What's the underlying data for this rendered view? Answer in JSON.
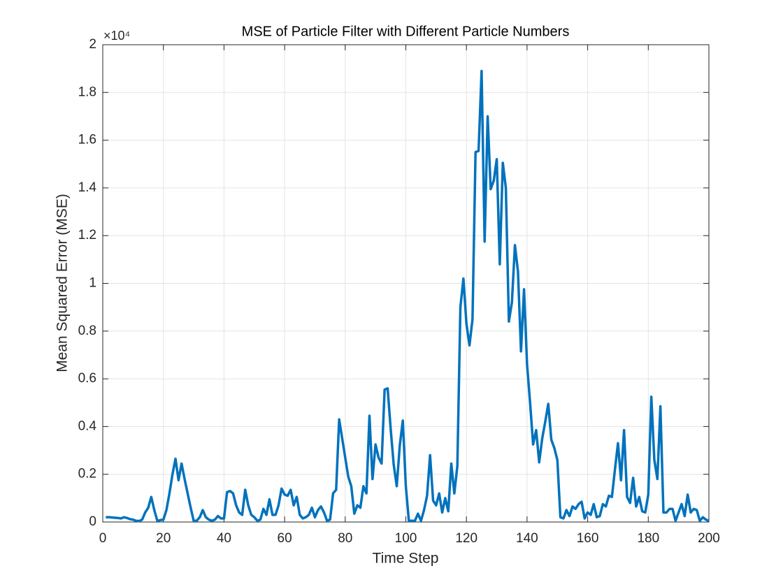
{
  "chart_data": {
    "type": "line",
    "title": "MSE of Particle Filter with Different Particle Numbers",
    "xlabel": "Time Step",
    "ylabel": "Mean Squared Error (MSE)",
    "y_multiplier": "×10⁴",
    "x": [
      1,
      2,
      3,
      4,
      5,
      6,
      7,
      8,
      9,
      10,
      11,
      12,
      13,
      14,
      15,
      16,
      17,
      18,
      19,
      20,
      21,
      22,
      23,
      24,
      25,
      26,
      27,
      28,
      29,
      30,
      31,
      32,
      33,
      34,
      35,
      36,
      37,
      38,
      39,
      40,
      41,
      42,
      43,
      44,
      45,
      46,
      47,
      48,
      49,
      50,
      51,
      52,
      53,
      54,
      55,
      56,
      57,
      58,
      59,
      60,
      61,
      62,
      63,
      64,
      65,
      66,
      67,
      68,
      69,
      70,
      71,
      72,
      73,
      74,
      75,
      76,
      77,
      78,
      79,
      80,
      81,
      82,
      83,
      84,
      85,
      86,
      87,
      88,
      89,
      90,
      91,
      92,
      93,
      94,
      95,
      96,
      97,
      98,
      99,
      100,
      101,
      102,
      103,
      104,
      105,
      106,
      107,
      108,
      109,
      110,
      111,
      112,
      113,
      114,
      115,
      116,
      117,
      118,
      119,
      120,
      121,
      122,
      123,
      124,
      125,
      126,
      127,
      128,
      129,
      130,
      131,
      132,
      133,
      134,
      135,
      136,
      137,
      138,
      139,
      140,
      141,
      142,
      143,
      144,
      145,
      146,
      147,
      148,
      149,
      150,
      151,
      152,
      153,
      154,
      155,
      156,
      157,
      158,
      159,
      160,
      161,
      162,
      163,
      164,
      165,
      166,
      167,
      168,
      169,
      170,
      171,
      172,
      173,
      174,
      175,
      176,
      177,
      178,
      179,
      180,
      181,
      182,
      183,
      184,
      185,
      186,
      187,
      188,
      189,
      190,
      191,
      192,
      193,
      194,
      195,
      196,
      197,
      198,
      199,
      200
    ],
    "series": [
      {
        "color": "#0072bd",
        "values": [
          0.02,
          0.02,
          0.019,
          0.018,
          0.017,
          0.015,
          0.02,
          0.017,
          0.012,
          0.01,
          0.005,
          0.004,
          0.01,
          0.04,
          0.06,
          0.105,
          0.05,
          0.005,
          0.008,
          0.01,
          0.05,
          0.12,
          0.2,
          0.265,
          0.175,
          0.245,
          0.18,
          0.12,
          0.06,
          0.005,
          0.005,
          0.02,
          0.05,
          0.02,
          0.01,
          0.005,
          0.01,
          0.025,
          0.015,
          0.015,
          0.125,
          0.13,
          0.12,
          0.07,
          0.04,
          0.03,
          0.135,
          0.07,
          0.03,
          0.02,
          0.005,
          0.01,
          0.055,
          0.03,
          0.095,
          0.03,
          0.03,
          0.07,
          0.14,
          0.115,
          0.11,
          0.135,
          0.07,
          0.105,
          0.03,
          0.015,
          0.02,
          0.03,
          0.06,
          0.02,
          0.05,
          0.065,
          0.04,
          0.005,
          0.01,
          0.12,
          0.135,
          0.43,
          0.35,
          0.27,
          0.19,
          0.15,
          0.035,
          0.07,
          0.06,
          0.15,
          0.12,
          0.445,
          0.18,
          0.325,
          0.27,
          0.245,
          0.555,
          0.56,
          0.39,
          0.24,
          0.15,
          0.32,
          0.425,
          0.15,
          0.005,
          0.005,
          0.005,
          0.035,
          0.005,
          0.05,
          0.11,
          0.28,
          0.09,
          0.07,
          0.12,
          0.04,
          0.1,
          0.045,
          0.245,
          0.12,
          0.235,
          0.9,
          1.02,
          0.83,
          0.74,
          0.85,
          1.55,
          1.555,
          1.89,
          1.175,
          1.7,
          1.395,
          1.43,
          1.52,
          1.08,
          1.505,
          1.4,
          0.84,
          0.92,
          1.16,
          1.05,
          0.715,
          0.975,
          0.66,
          0.5,
          0.325,
          0.385,
          0.25,
          0.35,
          0.42,
          0.495,
          0.345,
          0.31,
          0.26,
          0.02,
          0.015,
          0.05,
          0.025,
          0.065,
          0.055,
          0.075,
          0.085,
          0.015,
          0.04,
          0.03,
          0.075,
          0.02,
          0.025,
          0.075,
          0.065,
          0.11,
          0.105,
          0.22,
          0.33,
          0.175,
          0.385,
          0.105,
          0.08,
          0.185,
          0.065,
          0.105,
          0.045,
          0.04,
          0.115,
          0.525,
          0.26,
          0.18,
          0.485,
          0.04,
          0.04,
          0.055,
          0.055,
          0.005,
          0.04,
          0.075,
          0.025,
          0.115,
          0.04,
          0.055,
          0.05,
          0.005,
          0.02,
          0.01,
          0.005
        ]
      }
    ],
    "xlim": [
      0,
      200
    ],
    "xticks": [
      0,
      20,
      40,
      60,
      80,
      100,
      120,
      140,
      160,
      180,
      200
    ],
    "ylim": [
      0,
      2
    ],
    "yticks": [
      0,
      0.2,
      0.4,
      0.6,
      0.8,
      1,
      1.2,
      1.4,
      1.6,
      1.8,
      2
    ],
    "grid": true
  }
}
